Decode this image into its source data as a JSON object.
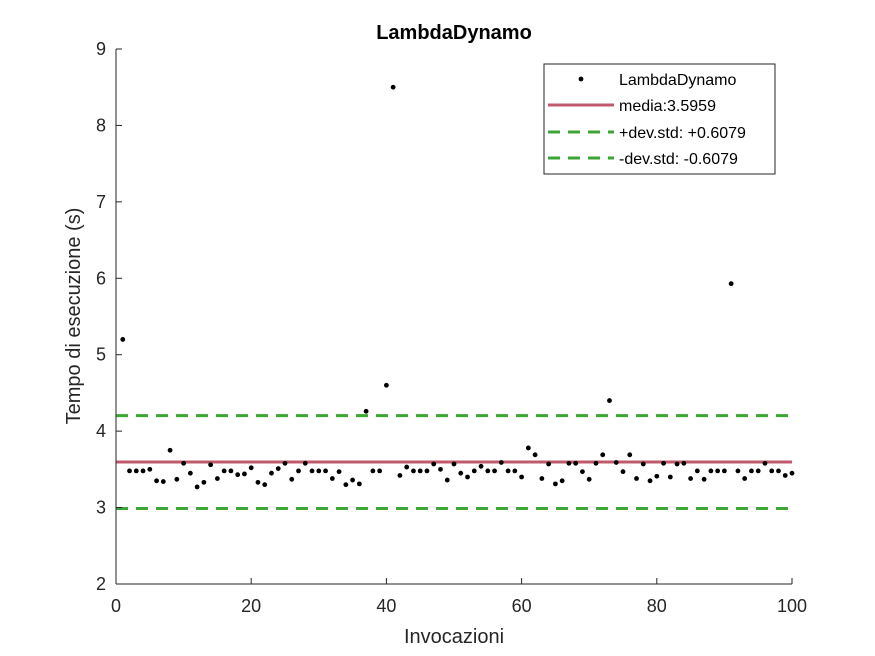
{
  "chart_data": {
    "type": "scatter",
    "title": "LambdaDynamo",
    "xlabel": "Invocazioni",
    "ylabel": "Tempo di esecuzione (s)",
    "xlim": [
      0,
      100
    ],
    "ylim": [
      2,
      9
    ],
    "xticks": [
      0,
      20,
      40,
      60,
      80,
      100
    ],
    "yticks": [
      2,
      3,
      4,
      5,
      6,
      7,
      8,
      9
    ],
    "grid": false,
    "legend_position": "top-right",
    "colors": {
      "points": "#000000",
      "mean": "#c0596b",
      "std": "#3ca635"
    },
    "series": [
      {
        "name": "LambdaDynamo",
        "kind": "points",
        "x": [
          1,
          2,
          3,
          4,
          5,
          6,
          7,
          8,
          9,
          10,
          11,
          12,
          13,
          14,
          15,
          16,
          17,
          18,
          19,
          20,
          21,
          22,
          23,
          24,
          25,
          26,
          27,
          28,
          29,
          30,
          31,
          32,
          33,
          34,
          35,
          36,
          37,
          38,
          39,
          40,
          41,
          42,
          43,
          44,
          45,
          46,
          47,
          48,
          49,
          50,
          51,
          52,
          53,
          54,
          55,
          56,
          57,
          58,
          59,
          60,
          61,
          62,
          63,
          64,
          65,
          66,
          67,
          68,
          69,
          70,
          71,
          72,
          73,
          74,
          75,
          76,
          77,
          78,
          79,
          80,
          81,
          82,
          83,
          84,
          85,
          86,
          87,
          88,
          89,
          90,
          91,
          92,
          93,
          94,
          95,
          96,
          97,
          98,
          99,
          100
        ],
        "y": [
          5.2,
          3.48,
          3.48,
          3.48,
          3.5,
          3.35,
          3.34,
          3.75,
          3.37,
          3.58,
          3.45,
          3.27,
          3.33,
          3.56,
          3.38,
          3.48,
          3.48,
          3.43,
          3.44,
          3.52,
          3.33,
          3.3,
          3.45,
          3.51,
          3.58,
          3.37,
          3.48,
          3.58,
          3.48,
          3.48,
          3.48,
          3.38,
          3.47,
          3.3,
          3.36,
          3.31,
          4.26,
          3.48,
          3.48,
          4.6,
          8.5,
          3.42,
          3.53,
          3.48,
          3.48,
          3.48,
          3.57,
          3.5,
          3.36,
          3.57,
          3.45,
          3.4,
          3.48,
          3.54,
          3.48,
          3.48,
          3.59,
          3.48,
          3.48,
          3.4,
          3.78,
          3.69,
          3.38,
          3.57,
          3.31,
          3.35,
          3.58,
          3.58,
          3.47,
          3.37,
          3.58,
          3.69,
          4.4,
          3.59,
          3.47,
          3.69,
          3.38,
          3.57,
          3.35,
          3.41,
          3.58,
          3.4,
          3.57,
          3.58,
          3.38,
          3.48,
          3.37,
          3.48,
          3.48,
          3.48,
          5.93,
          3.48,
          3.38,
          3.48,
          3.48,
          3.58,
          3.48,
          3.48,
          3.42,
          3.45
        ]
      },
      {
        "name": "media:3.5959",
        "kind": "hline",
        "value": 3.5959
      },
      {
        "name": "+dev.std: +0.6079",
        "kind": "hline",
        "value": 4.2038
      },
      {
        "name": "-dev.std: -0.6079",
        "kind": "hline",
        "value": 2.988
      }
    ]
  }
}
